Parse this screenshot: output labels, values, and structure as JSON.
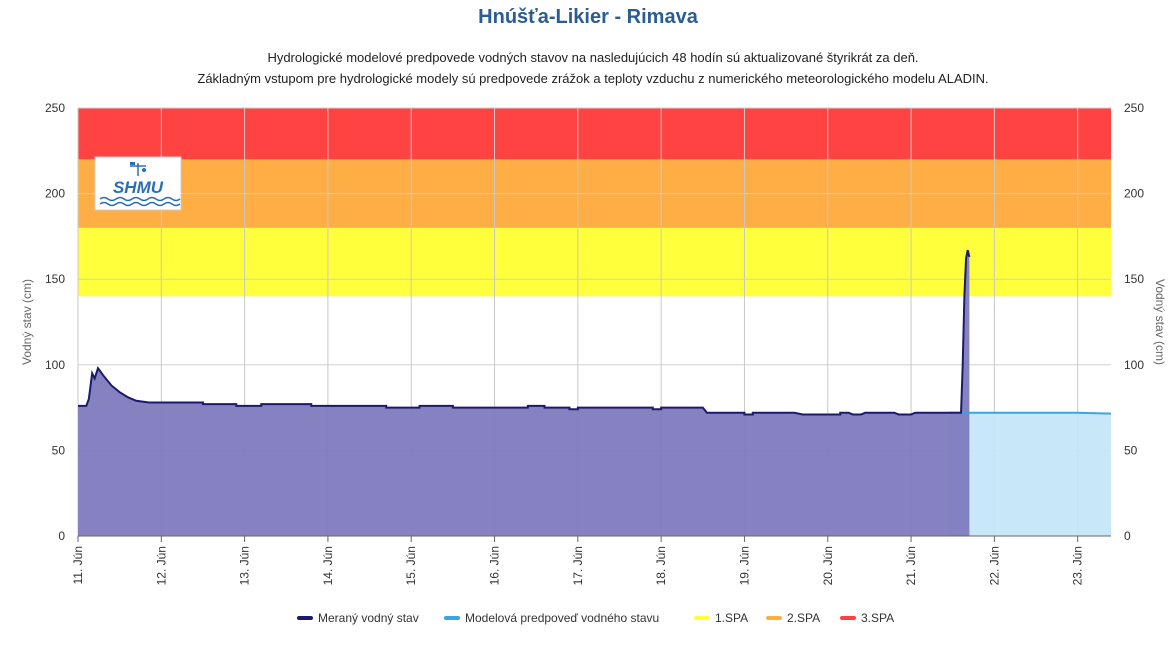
{
  "header": {
    "title": "Hnúšťa-Likier - Rimava",
    "subtitle_line1": "Hydrologické modelové predpovede vodných stavov na nasledujúcich 48 hodín sú aktualizované štyrikrát za deň.",
    "subtitle_line2": "Základným vstupom pre hydrologické modely sú predpovede zrážok a teploty vzduchu z numerického meteorologického modelu ALADIN."
  },
  "logo": {
    "text": "SHMU"
  },
  "colors": {
    "measured_line": "#1c1a6b",
    "measured_fill": "#7f7bbf",
    "forecast_line": "#3aa7dc",
    "forecast_fill": "#c5e6f8",
    "spa1": "#ffff3b",
    "spa2": "#ffad45",
    "spa3": "#ff4343",
    "title": "#2b5d92"
  },
  "chart_data": {
    "type": "area",
    "title": "Hnúšťa-Likier - Rimava",
    "ylabel": "Vodný stav (cm)",
    "ylabel_right": "Vodný stav (cm)",
    "ylim": [
      0,
      250
    ],
    "yticks": [
      0,
      50,
      100,
      150,
      200,
      250
    ],
    "grid": true,
    "legend_position": "bottom-center",
    "x_start_label": "11. Jún",
    "xlim_days": [
      0,
      12.4
    ],
    "xticks": [
      {
        "day": 0,
        "label": "11. Jún"
      },
      {
        "day": 1,
        "label": "12. Jún"
      },
      {
        "day": 2,
        "label": "13. Jún"
      },
      {
        "day": 3,
        "label": "14. Jún"
      },
      {
        "day": 4,
        "label": "15. Jún"
      },
      {
        "day": 5,
        "label": "16. Jún"
      },
      {
        "day": 6,
        "label": "17. Jún"
      },
      {
        "day": 7,
        "label": "18. Jún"
      },
      {
        "day": 8,
        "label": "19. Jún"
      },
      {
        "day": 9,
        "label": "20. Jún"
      },
      {
        "day": 10,
        "label": "21. Jún"
      },
      {
        "day": 11,
        "label": "22. Jún"
      },
      {
        "day": 12,
        "label": "23. Jún"
      }
    ],
    "bands": [
      {
        "name": "1.SPA",
        "from": 140,
        "to": 180
      },
      {
        "name": "2.SPA",
        "from": 180,
        "to": 220
      },
      {
        "name": "3.SPA",
        "from": 220,
        "to": 250
      }
    ],
    "series": [
      {
        "name": "Meraný vodný stav",
        "type": "area",
        "points": [
          [
            0,
            76
          ],
          [
            0.1,
            76
          ],
          [
            0.13,
            80
          ],
          [
            0.17,
            95
          ],
          [
            0.2,
            92
          ],
          [
            0.24,
            98
          ],
          [
            0.3,
            94
          ],
          [
            0.35,
            91
          ],
          [
            0.4,
            88
          ],
          [
            0.5,
            84
          ],
          [
            0.6,
            81
          ],
          [
            0.7,
            79
          ],
          [
            0.85,
            78
          ],
          [
            0.9,
            78
          ],
          [
            1.0,
            78
          ],
          [
            1.5,
            78
          ],
          [
            1.5,
            77
          ],
          [
            1.9,
            77
          ],
          [
            1.9,
            76
          ],
          [
            2.2,
            76
          ],
          [
            2.2,
            77
          ],
          [
            2.8,
            77
          ],
          [
            2.8,
            76
          ],
          [
            3.5,
            76
          ],
          [
            3.7,
            76
          ],
          [
            3.7,
            75
          ],
          [
            4.1,
            75
          ],
          [
            4.1,
            76
          ],
          [
            4.5,
            76
          ],
          [
            4.5,
            75
          ],
          [
            5.4,
            75
          ],
          [
            5.4,
            76
          ],
          [
            5.6,
            76
          ],
          [
            5.6,
            75
          ],
          [
            5.9,
            75
          ],
          [
            5.9,
            74
          ],
          [
            6.0,
            74
          ],
          [
            6.0,
            75
          ],
          [
            6.9,
            75
          ],
          [
            6.9,
            74
          ],
          [
            7.0,
            74
          ],
          [
            7.0,
            75
          ],
          [
            7.5,
            75
          ],
          [
            7.55,
            72
          ],
          [
            8.0,
            72
          ],
          [
            8.0,
            71
          ],
          [
            8.1,
            71
          ],
          [
            8.1,
            72
          ],
          [
            8.6,
            72
          ],
          [
            8.7,
            71
          ],
          [
            9.15,
            71
          ],
          [
            9.15,
            72
          ],
          [
            9.25,
            72
          ],
          [
            9.3,
            71
          ],
          [
            9.4,
            71
          ],
          [
            9.45,
            72
          ],
          [
            9.8,
            72
          ],
          [
            9.85,
            71
          ],
          [
            10.0,
            71
          ],
          [
            10.05,
            72
          ],
          [
            10.5,
            72
          ],
          [
            10.6,
            72
          ],
          [
            10.62,
            100
          ],
          [
            10.64,
            140
          ],
          [
            10.66,
            162
          ],
          [
            10.68,
            167
          ],
          [
            10.7,
            163
          ]
        ]
      },
      {
        "name": "Modelová predpoveď vodného stavu",
        "type": "area",
        "points": [
          [
            10.45,
            72
          ],
          [
            11.0,
            72
          ],
          [
            12.0,
            72
          ],
          [
            12.4,
            71.5
          ]
        ]
      }
    ]
  },
  "legend": {
    "items": [
      {
        "label": "Meraný vodný stav"
      },
      {
        "label": "Modelová predpoveď vodného stavu"
      },
      {
        "label": "1.SPA"
      },
      {
        "label": "2.SPA"
      },
      {
        "label": "3.SPA"
      }
    ]
  }
}
